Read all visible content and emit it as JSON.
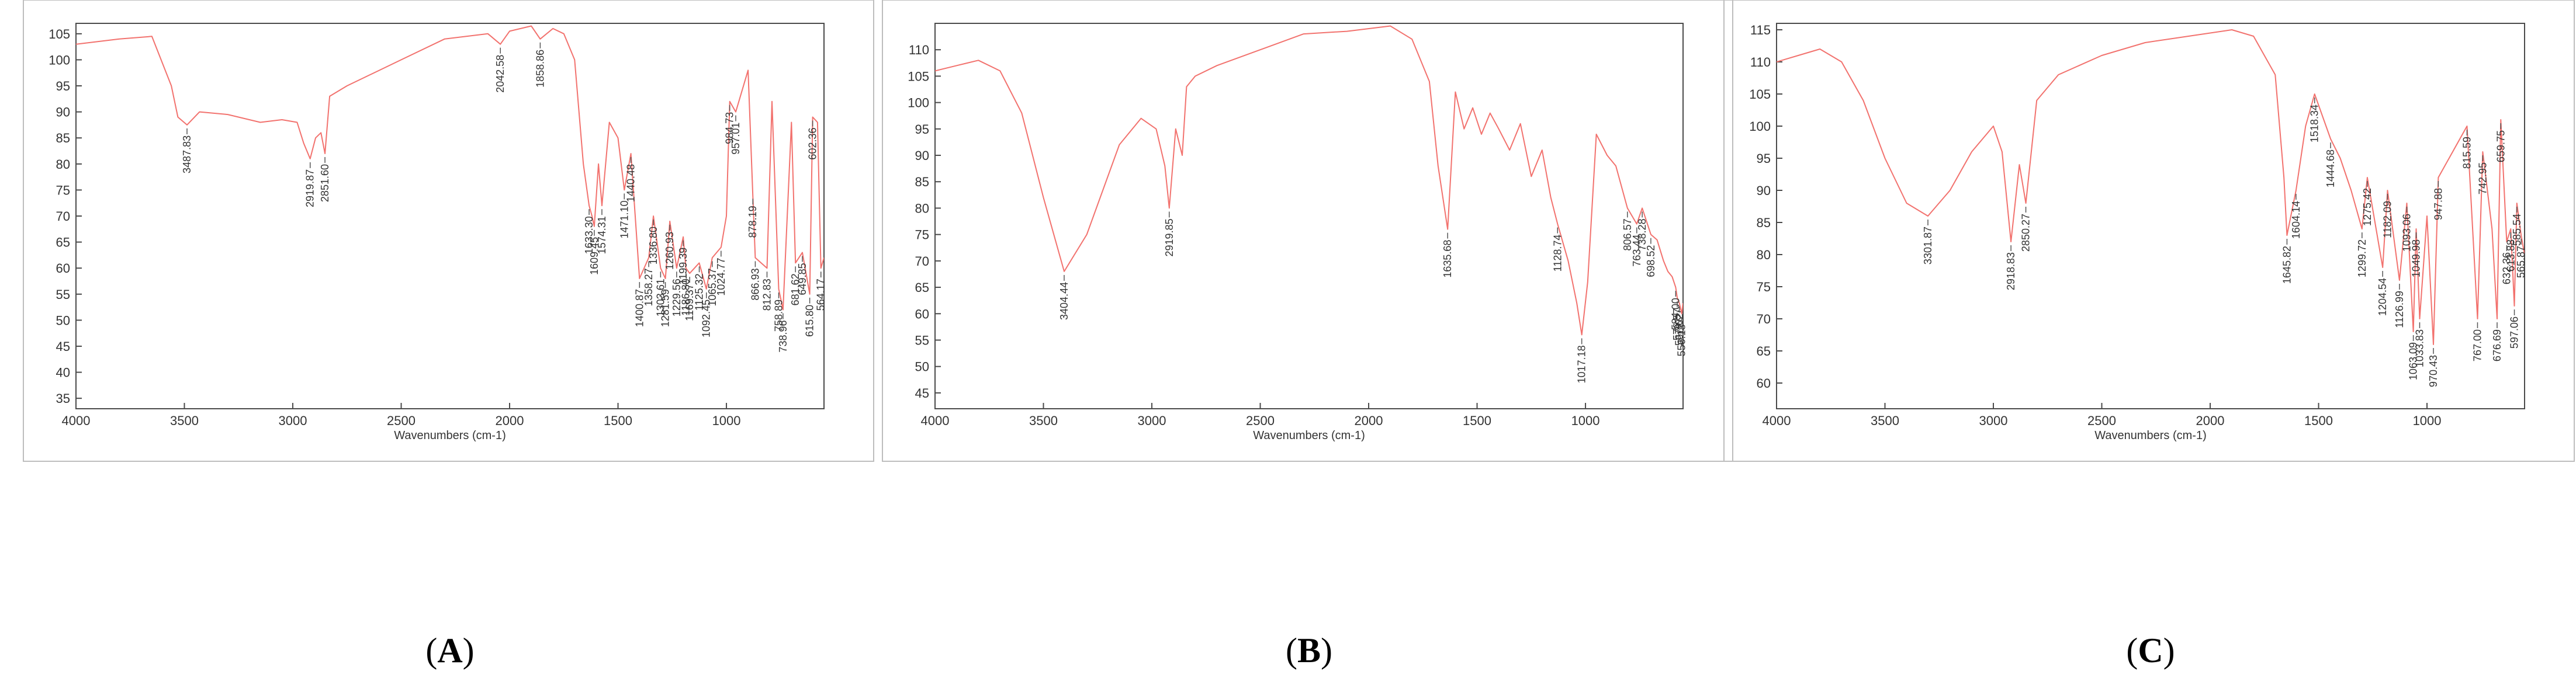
{
  "chart_data": [
    {
      "type": "line",
      "panel_label": "A",
      "xlabel": "Wavenumbers (cm-1)",
      "ylabel": "",
      "xlim": [
        4000,
        550
      ],
      "ylim": [
        33,
        107
      ],
      "x_ticks": [
        4000,
        3500,
        3000,
        2500,
        2000,
        1500,
        1000
      ],
      "y_ticks": [
        35,
        40,
        45,
        50,
        55,
        60,
        65,
        70,
        75,
        80,
        85,
        90,
        95,
        100,
        105
      ],
      "grid": false,
      "color": "#f2726e",
      "x": [
        4000,
        3800,
        3650,
        3560,
        3530,
        3487.83,
        3430,
        3300,
        3150,
        3050,
        2980,
        2950,
        2919.87,
        2895,
        2870,
        2851.6,
        2830,
        2750,
        2500,
        2300,
        2100,
        2042.58,
        2000,
        1900,
        1858.86,
        1800,
        1750,
        1700,
        1660,
        1633.3,
        1620,
        1609.45,
        1590,
        1574.31,
        1540,
        1500,
        1471.1,
        1440.48,
        1400.87,
        1358.27,
        1336.8,
        1303.61,
        1281.59,
        1260.93,
        1229.56,
        1199.39,
        1186.8,
        1169.37,
        1125.32,
        1092.45,
        1065.37,
        1024.77,
        1000,
        984.73,
        957.01,
        900,
        878.19,
        866.93,
        812.83,
        790,
        758.89,
        738.96,
        700,
        681.62,
        649.85,
        615.8,
        602.36,
        580,
        564.17,
        550
      ],
      "y": [
        103,
        104,
        104.5,
        95,
        89,
        87.5,
        90,
        89.5,
        88,
        88.5,
        88,
        84,
        81,
        85,
        86,
        82,
        93,
        95,
        100,
        104,
        105,
        103,
        105.5,
        106.5,
        104,
        106,
        105,
        100,
        80,
        72,
        70,
        68,
        80,
        72,
        88,
        85,
        75,
        82,
        58,
        62,
        70,
        60,
        58,
        69,
        60,
        66,
        60,
        59,
        61,
        56,
        62,
        64,
        70,
        92,
        90,
        98,
        74,
        62,
        60,
        92,
        56,
        52,
        88,
        61,
        63,
        55,
        89,
        88,
        60,
        62
      ],
      "peak_labels": [
        {
          "x": 3487.83,
          "text": "3487.83"
        },
        {
          "x": 2919.87,
          "text": "2919.87"
        },
        {
          "x": 2851.6,
          "text": "2851.60"
        },
        {
          "x": 2042.58,
          "text": "2042.58"
        },
        {
          "x": 1858.86,
          "text": "1858.86"
        },
        {
          "x": 1633.3,
          "text": "1633.30"
        },
        {
          "x": 1609.45,
          "text": "1609.45"
        },
        {
          "x": 1574.31,
          "text": "1574.31"
        },
        {
          "x": 1471.1,
          "text": "1471.10"
        },
        {
          "x": 1440.48,
          "text": "1440.48"
        },
        {
          "x": 1400.87,
          "text": "1400.87"
        },
        {
          "x": 1358.27,
          "text": "1358.27"
        },
        {
          "x": 1336.8,
          "text": "1336.80"
        },
        {
          "x": 1303.61,
          "text": "1303.61"
        },
        {
          "x": 1281.59,
          "text": "1281.59"
        },
        {
          "x": 1260.93,
          "text": "1260.93"
        },
        {
          "x": 1229.56,
          "text": "1229.56"
        },
        {
          "x": 1199.39,
          "text": "1199.39"
        },
        {
          "x": 1186.8,
          "text": "1186.80"
        },
        {
          "x": 1169.37,
          "text": "1169.37"
        },
        {
          "x": 1125.32,
          "text": "1125.32"
        },
        {
          "x": 1092.45,
          "text": "1092.45"
        },
        {
          "x": 1065.37,
          "text": "1065.37"
        },
        {
          "x": 1024.77,
          "text": "1024.77"
        },
        {
          "x": 984.73,
          "text": "984.73"
        },
        {
          "x": 957.01,
          "text": "957.01"
        },
        {
          "x": 878.19,
          "text": "878.19"
        },
        {
          "x": 866.93,
          "text": "866.93"
        },
        {
          "x": 812.83,
          "text": "812.83"
        },
        {
          "x": 758.89,
          "text": "758.89"
        },
        {
          "x": 738.96,
          "text": "738.96"
        },
        {
          "x": 681.62,
          "text": "681.62"
        },
        {
          "x": 649.85,
          "text": "649.85"
        },
        {
          "x": 615.8,
          "text": "615.80"
        },
        {
          "x": 602.36,
          "text": "602.36"
        },
        {
          "x": 564.17,
          "text": "564.17"
        }
      ]
    },
    {
      "type": "line",
      "panel_label": "B",
      "xlabel": "Wavenumbers (cm-1)",
      "ylabel": "",
      "xlim": [
        4000,
        550
      ],
      "ylim": [
        42,
        115
      ],
      "x_ticks": [
        4000,
        3500,
        3000,
        2500,
        2000,
        1500,
        1000
      ],
      "y_ticks": [
        45,
        50,
        55,
        60,
        65,
        70,
        75,
        80,
        85,
        90,
        95,
        100,
        105,
        110
      ],
      "grid": false,
      "color": "#f2726e",
      "x": [
        4000,
        3900,
        3800,
        3700,
        3600,
        3500,
        3404.44,
        3300,
        3150,
        3050,
        2980,
        2940,
        2919.85,
        2890,
        2860,
        2840,
        2800,
        2700,
        2500,
        2300,
        2100,
        1900,
        1800,
        1720,
        1680,
        1635.68,
        1600,
        1560,
        1520,
        1480,
        1440,
        1400,
        1350,
        1300,
        1250,
        1200,
        1160,
        1128.74,
        1080,
        1040,
        1017.18,
        990,
        950,
        900,
        860,
        806.57,
        763.44,
        738.28,
        698.52,
        670,
        640,
        620,
        600,
        584,
        576.57,
        567.02,
        556.18,
        550
      ],
      "y": [
        106,
        107,
        108,
        106,
        98,
        82,
        68,
        75,
        92,
        97,
        95,
        88,
        80,
        95,
        90,
        103,
        105,
        107,
        110,
        113,
        113.5,
        114.5,
        112,
        104,
        88,
        76,
        102,
        95,
        99,
        94,
        98,
        95,
        91,
        96,
        86,
        91,
        82,
        77,
        70,
        62,
        56,
        66,
        94,
        90,
        88,
        80,
        77,
        80,
        75,
        74,
        70,
        68,
        67,
        65,
        63,
        62,
        60,
        62
      ],
      "peak_labels": [
        {
          "x": 3404.44,
          "text": "3404.44"
        },
        {
          "x": 2919.85,
          "text": "2919.85"
        },
        {
          "x": 1635.68,
          "text": "1635.68"
        },
        {
          "x": 1128.74,
          "text": "1128.74"
        },
        {
          "x": 1017.18,
          "text": "1017.18"
        },
        {
          "x": 806.57,
          "text": "806.57"
        },
        {
          "x": 763.44,
          "text": "763.44"
        },
        {
          "x": 738.28,
          "text": "738.28"
        },
        {
          "x": 698.52,
          "text": "698.52"
        },
        {
          "x": 584,
          "text": "584.00"
        },
        {
          "x": 576.57,
          "text": "576.57"
        },
        {
          "x": 567.02,
          "text": "567.02"
        },
        {
          "x": 556.18,
          "text": "556.18"
        }
      ]
    },
    {
      "type": "line",
      "panel_label": "C",
      "xlabel": "Wavenumbers (cm-1)",
      "ylabel": "",
      "xlim": [
        4000,
        550
      ],
      "ylim": [
        56,
        116
      ],
      "x_ticks": [
        4000,
        3500,
        3000,
        2500,
        2000,
        1500,
        1000
      ],
      "y_ticks": [
        60,
        65,
        70,
        75,
        80,
        85,
        90,
        95,
        100,
        105,
        110,
        115
      ],
      "grid": false,
      "color": "#f2726e",
      "x": [
        4000,
        3900,
        3800,
        3700,
        3600,
        3500,
        3400,
        3301.87,
        3200,
        3100,
        3000,
        2960,
        2918.83,
        2880,
        2850.27,
        2800,
        2700,
        2500,
        2300,
        2100,
        1900,
        1800,
        1700,
        1660,
        1645.82,
        1604.14,
        1560,
        1518.34,
        1444.68,
        1400,
        1350,
        1299.72,
        1275.42,
        1204.54,
        1182.09,
        1126.99,
        1093.06,
        1063.09,
        1049.98,
        1033.83,
        1000,
        970.43,
        947.88,
        815.59,
        767,
        742.95,
        700,
        676.69,
        659.75,
        632.36,
        613.88,
        597.06,
        585.54,
        565.87,
        550
      ],
      "y": [
        110,
        111,
        112,
        110,
        104,
        95,
        88,
        86,
        90,
        96,
        100,
        96,
        82,
        94,
        88,
        104,
        108,
        111,
        113,
        114,
        115,
        114,
        108,
        92,
        83,
        90,
        100,
        105,
        98,
        95,
        90,
        84,
        92,
        78,
        90,
        76,
        88,
        68,
        84,
        70,
        86,
        66,
        92,
        100,
        70,
        96,
        84,
        70,
        101,
        82,
        84,
        72,
        88,
        83,
        80
      ],
      "peak_labels": [
        {
          "x": 3301.87,
          "text": "3301.87"
        },
        {
          "x": 2918.83,
          "text": "2918.83"
        },
        {
          "x": 2850.27,
          "text": "2850.27"
        },
        {
          "x": 1645.82,
          "text": "1645.82"
        },
        {
          "x": 1604.14,
          "text": "1604.14"
        },
        {
          "x": 1518.34,
          "text": "1518.34"
        },
        {
          "x": 1444.68,
          "text": "1444.68"
        },
        {
          "x": 1299.72,
          "text": "1299.72"
        },
        {
          "x": 1275.42,
          "text": "1275.42"
        },
        {
          "x": 1204.54,
          "text": "1204.54"
        },
        {
          "x": 1182.09,
          "text": "1182.09"
        },
        {
          "x": 1126.99,
          "text": "1126.99"
        },
        {
          "x": 1093.06,
          "text": "1093.06"
        },
        {
          "x": 1063.09,
          "text": "1063.09"
        },
        {
          "x": 1049.98,
          "text": "1049.98"
        },
        {
          "x": 1033.83,
          "text": "1033.83"
        },
        {
          "x": 970.43,
          "text": "970.43"
        },
        {
          "x": 947.88,
          "text": "947.88"
        },
        {
          "x": 815.59,
          "text": "815.59"
        },
        {
          "x": 767,
          "text": "767.00"
        },
        {
          "x": 742.95,
          "text": "742.95"
        },
        {
          "x": 676.69,
          "text": "676.69"
        },
        {
          "x": 659.75,
          "text": "659.75"
        },
        {
          "x": 632.36,
          "text": "632.36"
        },
        {
          "x": 613.88,
          "text": "613.88"
        },
        {
          "x": 597.06,
          "text": "597.06"
        },
        {
          "x": 585.54,
          "text": "585.54"
        },
        {
          "x": 565.87,
          "text": "565.87"
        }
      ]
    }
  ]
}
